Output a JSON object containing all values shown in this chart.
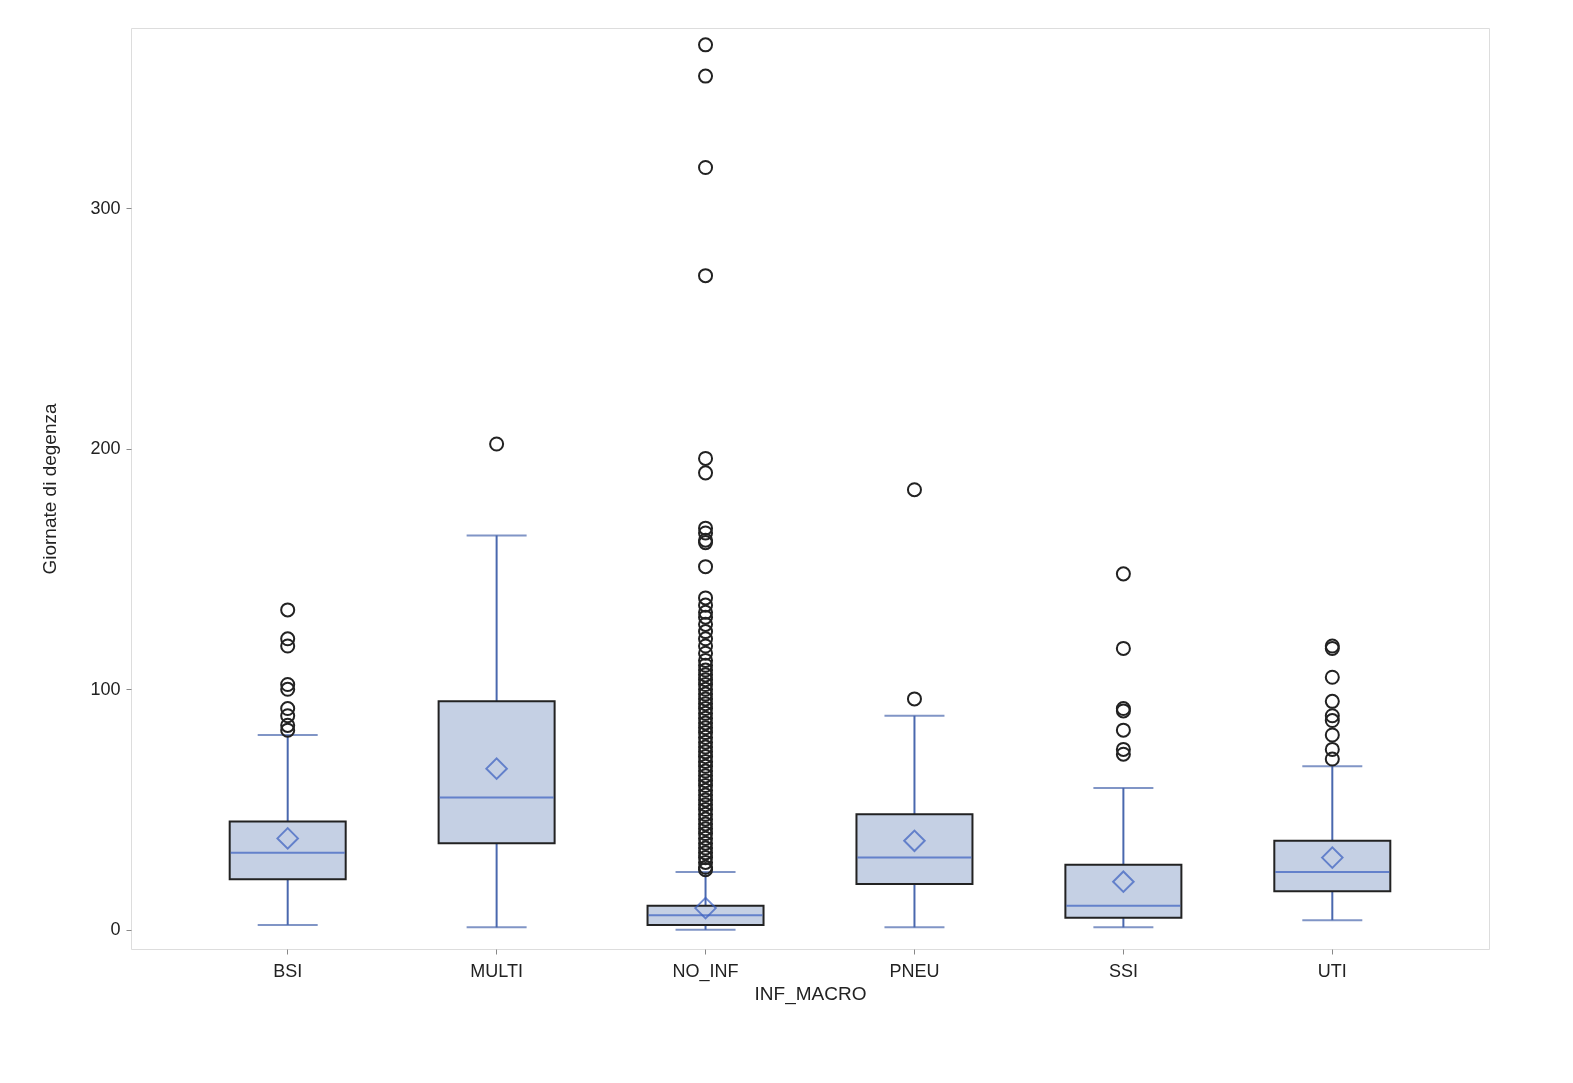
{
  "chart_data": {
    "type": "box",
    "xlabel": "INF_MACRO",
    "ylabel": "Giornate di degenza",
    "categories": [
      "BSI",
      "MULTI",
      "NO_INF",
      "PNEU",
      "SSI",
      "UTI"
    ],
    "ylim": [
      -8,
      375
    ],
    "yticks": [
      0,
      100,
      200,
      300
    ],
    "grid": false,
    "series": [
      {
        "color": "#c5d0e4",
        "boxes": [
          {
            "low": 2,
            "q1": 21,
            "median": 32,
            "q3": 45,
            "high": 81,
            "mean": 38,
            "outliers": [
              133,
              121,
              118,
              102,
              100,
              92,
              89,
              85,
              83
            ]
          },
          {
            "low": 1,
            "q1": 36,
            "median": 55,
            "q3": 95,
            "high": 164,
            "mean": 67,
            "outliers": [
              202
            ]
          },
          {
            "low": 0,
            "q1": 2,
            "median": 6,
            "q3": 10,
            "high": 24,
            "mean": 9,
            "outliers": [
              368,
              355,
              317,
              272,
              196,
              190,
              167,
              165,
              162,
              161,
              151,
              138,
              135,
              132,
              130,
              127,
              124,
              121,
              118,
              115,
              112,
              110,
              108,
              106,
              104,
              102,
              100,
              98,
              96,
              94,
              92,
              90,
              88,
              86,
              84,
              82,
              80,
              78,
              76,
              74,
              72,
              70,
              68,
              66,
              64,
              62,
              60,
              58,
              56,
              54,
              52,
              50,
              48,
              46,
              44,
              42,
              40,
              38,
              36,
              34,
              32,
              30,
              28,
              26,
              25
            ]
          },
          {
            "low": 1,
            "q1": 19,
            "median": 30,
            "q3": 48,
            "high": 89,
            "mean": 37,
            "outliers": [
              183,
              96
            ]
          },
          {
            "low": 1,
            "q1": 5,
            "median": 10,
            "q3": 27,
            "high": 59,
            "mean": 20,
            "outliers": [
              148,
              117,
              92,
              91,
              83,
              75,
              73
            ]
          },
          {
            "low": 4,
            "q1": 16,
            "median": 24,
            "q3": 37,
            "high": 68,
            "mean": 30,
            "outliers": [
              118,
              117,
              105,
              95,
              89,
              87,
              81,
              75,
              71
            ]
          }
        ]
      }
    ]
  }
}
